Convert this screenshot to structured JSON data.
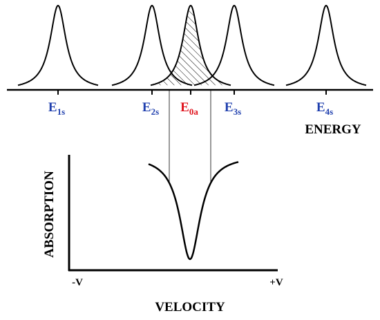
{
  "energy_levels": [
    {
      "main": "E",
      "sub": "1s"
    },
    {
      "main": "E",
      "sub": "2s"
    },
    {
      "main": "E",
      "sub": "0a"
    },
    {
      "main": "E",
      "sub": "3s"
    },
    {
      "main": "E",
      "sub": "4s"
    }
  ],
  "energy_axis_label": "ENERGY",
  "absorption_axis_label": "ABSORPTION",
  "velocity_axis_label": "VELOCITY",
  "velocity_min_label": "-V",
  "velocity_max_label": "+V"
}
